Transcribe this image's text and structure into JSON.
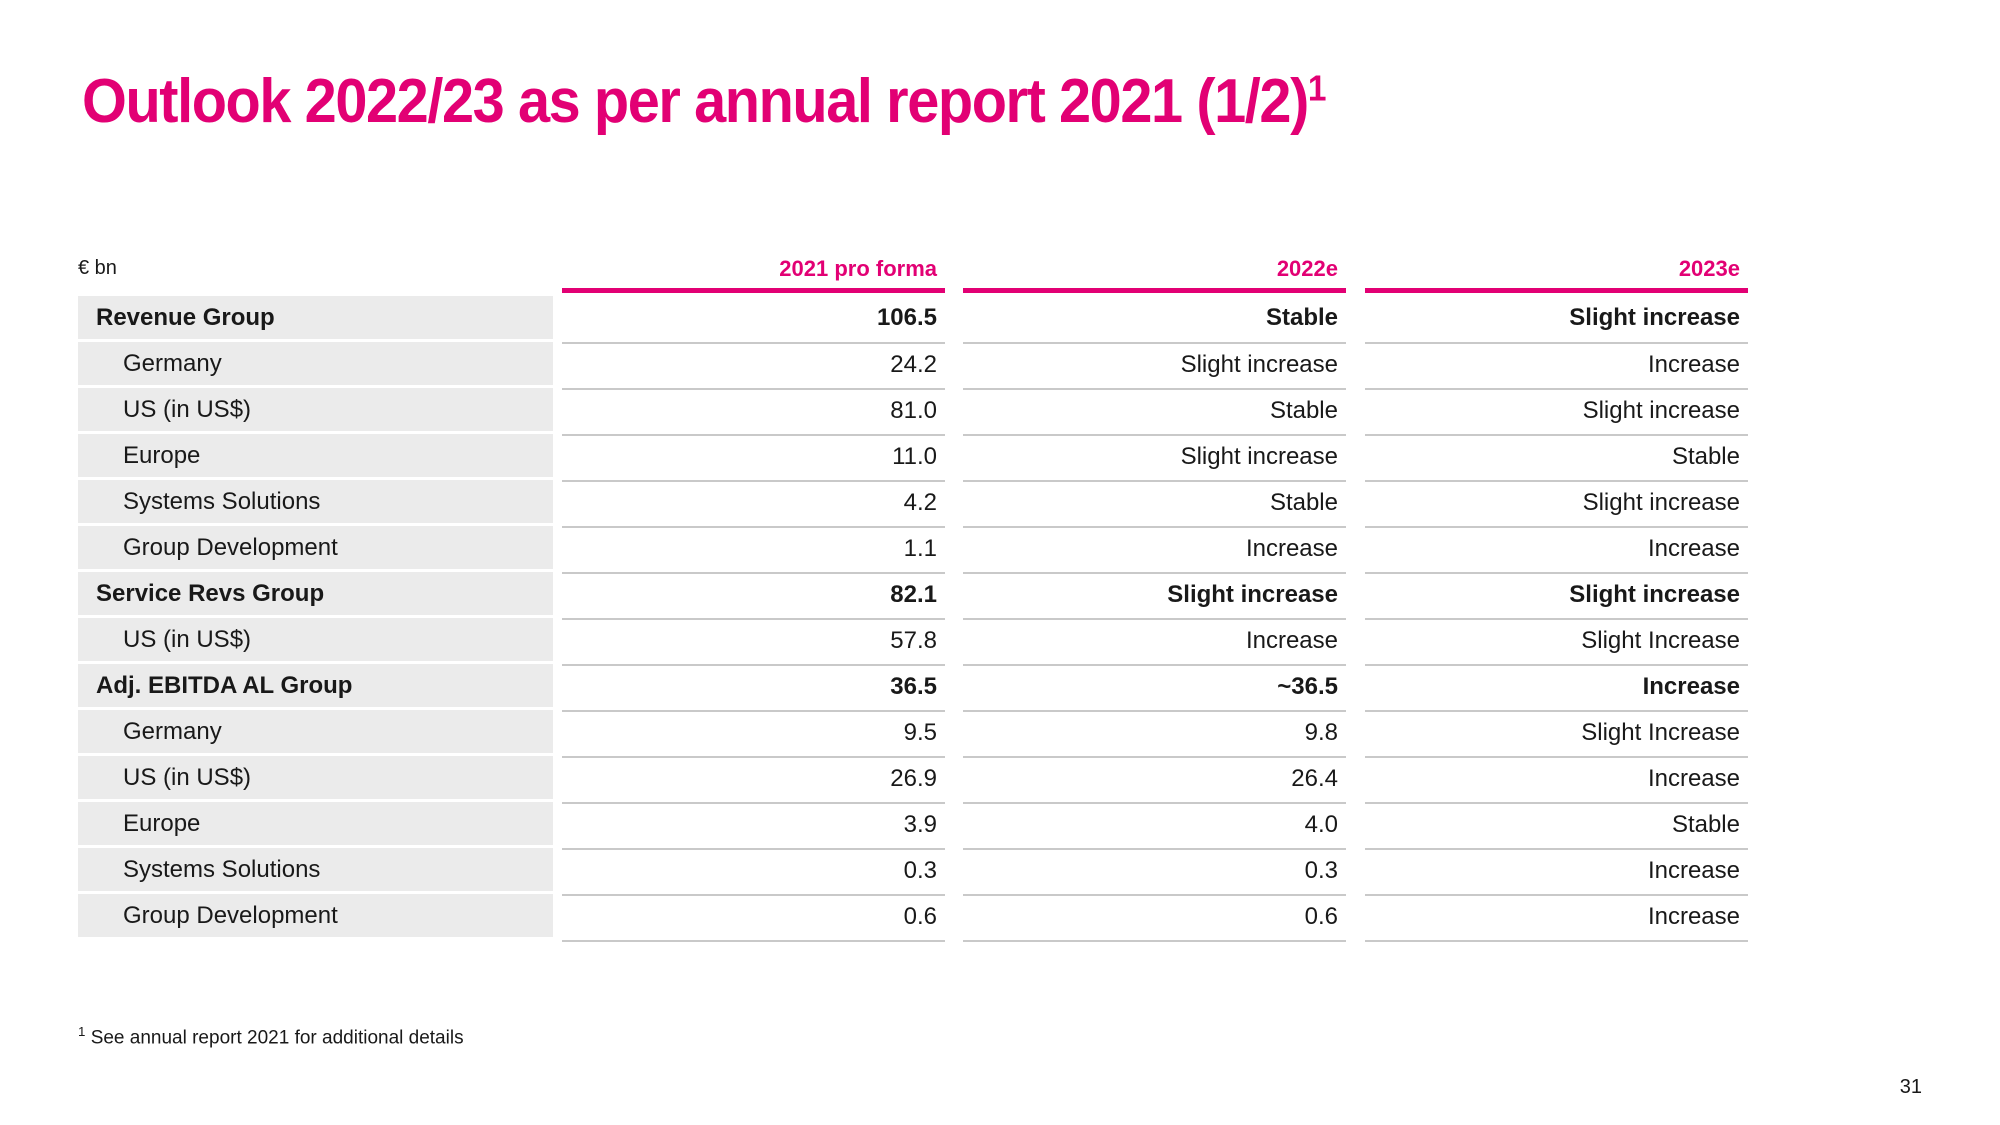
{
  "title": {
    "text": "Outlook 2022/23 as per annual report 2021 (1/2)",
    "superscript": "1"
  },
  "table": {
    "unit_label": "€ bn",
    "columns": [
      "2021 pro forma",
      "2022e",
      "2023e"
    ],
    "rows": [
      {
        "label": "Revenue Group",
        "bold": true,
        "indent": false,
        "values": [
          "106.5",
          "Stable",
          "Slight increase"
        ]
      },
      {
        "label": "Germany",
        "bold": false,
        "indent": true,
        "values": [
          "24.2",
          "Slight increase",
          "Increase"
        ]
      },
      {
        "label": "US (in US$)",
        "bold": false,
        "indent": true,
        "values": [
          "81.0",
          "Stable",
          "Slight increase"
        ]
      },
      {
        "label": "Europe",
        "bold": false,
        "indent": true,
        "values": [
          "11.0",
          "Slight increase",
          "Stable"
        ]
      },
      {
        "label": "Systems Solutions",
        "bold": false,
        "indent": true,
        "values": [
          "4.2",
          "Stable",
          "Slight increase"
        ]
      },
      {
        "label": "Group Development",
        "bold": false,
        "indent": true,
        "values": [
          "1.1",
          "Increase",
          "Increase"
        ]
      },
      {
        "label": "Service Revs Group",
        "bold": true,
        "indent": false,
        "values": [
          "82.1",
          "Slight increase",
          "Slight increase"
        ]
      },
      {
        "label": "US (in US$)",
        "bold": false,
        "indent": true,
        "values": [
          "57.8",
          "Increase",
          "Slight Increase"
        ]
      },
      {
        "label": "Adj. EBITDA AL Group",
        "bold": true,
        "indent": false,
        "values": [
          "36.5",
          "~36.5",
          "Increase"
        ]
      },
      {
        "label": "Germany",
        "bold": false,
        "indent": true,
        "values": [
          "9.5",
          "9.8",
          "Slight Increase"
        ]
      },
      {
        "label": "US (in US$)",
        "bold": false,
        "indent": true,
        "values": [
          "26.9",
          "26.4",
          "Increase"
        ]
      },
      {
        "label": "Europe",
        "bold": false,
        "indent": true,
        "values": [
          "3.9",
          "4.0",
          "Stable"
        ]
      },
      {
        "label": "Systems Solutions",
        "bold": false,
        "indent": true,
        "values": [
          "0.3",
          "0.3",
          "Increase"
        ]
      },
      {
        "label": "Group Development",
        "bold": false,
        "indent": true,
        "values": [
          "0.6",
          "0.6",
          "Increase"
        ]
      }
    ]
  },
  "footnote": {
    "superscript": "1",
    "text": "See annual report 2021 for additional details"
  },
  "page_number": "31",
  "colors": {
    "magenta": "#E20074",
    "row_band_gray": "#EBEBEB",
    "separator_gray": "#C9C9C9",
    "text": "#191919",
    "background": "#FFFFFF"
  }
}
